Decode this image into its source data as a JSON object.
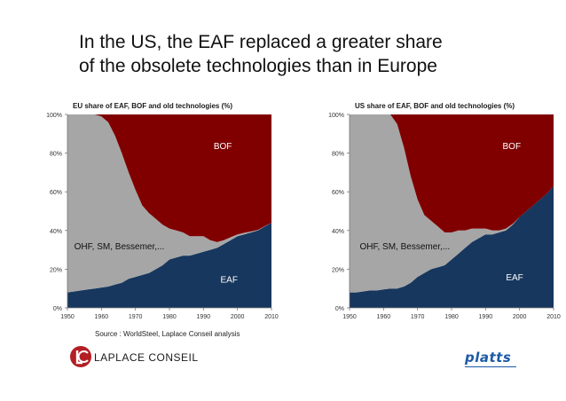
{
  "slide": {
    "title_line1": "In the US, the EAF replaced a greater share",
    "title_line2": "of the obsolete technologies than in Europe",
    "source": "Source : WorldSteel, Laplace Conseil analysis",
    "logo_left": {
      "text": "LAPLACE CONSEIL",
      "icon": "laplace-conseil-logo-icon"
    },
    "logo_right": {
      "text": "platts",
      "icon": "platts-logo"
    }
  },
  "colors": {
    "eaf": "#17375e",
    "old": "#a6a6a6",
    "bof": "#800000"
  },
  "chart_data": [
    {
      "type": "area",
      "stacked": true,
      "title": "EU share of EAF, BOF and old technologies (%)",
      "xlabel": "",
      "ylabel": "",
      "xlim": [
        1950,
        2010
      ],
      "ylim": [
        0,
        100
      ],
      "xticks": [
        1950,
        1960,
        1970,
        1980,
        1990,
        2000,
        2010
      ],
      "yticks": [
        "0%",
        "20%",
        "40%",
        "60%",
        "80%",
        "100%"
      ],
      "grid": false,
      "x": [
        1950,
        1952,
        1954,
        1956,
        1958,
        1960,
        1962,
        1964,
        1966,
        1968,
        1970,
        1972,
        1974,
        1976,
        1978,
        1980,
        1982,
        1984,
        1986,
        1988,
        1990,
        1992,
        1994,
        1996,
        1998,
        2000,
        2002,
        2004,
        2006,
        2008,
        2010
      ],
      "series": [
        {
          "name": "EAF",
          "label": "EAF",
          "values": [
            8,
            8.5,
            9,
            9.5,
            10,
            10.5,
            11,
            12,
            13,
            15,
            16,
            17,
            18,
            20,
            22,
            25,
            26,
            27,
            27,
            28,
            29,
            30,
            31,
            33,
            35,
            37,
            38,
            39,
            40,
            42,
            44
          ]
        },
        {
          "name": "OHF, SM, Bessemer,...",
          "label": "OHF, SM, Bessemer,...",
          "values": [
            92,
            91.5,
            91,
            90.5,
            90,
            88.5,
            85,
            77,
            67,
            55,
            45,
            36,
            31,
            26,
            21,
            16,
            14,
            12,
            10,
            9,
            8,
            5,
            3,
            2,
            1.5,
            1,
            0.8,
            0.5,
            0.3,
            0.2,
            0
          ]
        },
        {
          "name": "BOF",
          "label": "BOF",
          "values": [
            0,
            0,
            0,
            0,
            0,
            1,
            4,
            11,
            20,
            30,
            39,
            47,
            51,
            54,
            57,
            59,
            60,
            61,
            63,
            63,
            63,
            65,
            66,
            65,
            63.5,
            62,
            61.2,
            60.5,
            59.7,
            57.8,
            56
          ]
        }
      ],
      "area_labels": [
        {
          "text": "BOF",
          "x": 1993,
          "y": 84
        },
        {
          "text": "OHF, SM, Bessemer,...",
          "x": 1952,
          "y": 32
        },
        {
          "text": "EAF",
          "x": 1995,
          "y": 15
        }
      ]
    },
    {
      "type": "area",
      "stacked": true,
      "title": "US share of EAF, BOF and old technologies (%)",
      "xlabel": "",
      "ylabel": "",
      "xlim": [
        1950,
        2010
      ],
      "ylim": [
        0,
        100
      ],
      "xticks": [
        1950,
        1960,
        1970,
        1980,
        1990,
        2000,
        2010
      ],
      "yticks": [
        "0%",
        "20%",
        "40%",
        "60%",
        "80%",
        "100%"
      ],
      "grid": false,
      "x": [
        1950,
        1952,
        1954,
        1956,
        1958,
        1960,
        1962,
        1964,
        1966,
        1968,
        1970,
        1972,
        1974,
        1976,
        1978,
        1980,
        1982,
        1984,
        1986,
        1988,
        1990,
        1992,
        1994,
        1996,
        1998,
        2000,
        2002,
        2004,
        2006,
        2008,
        2010
      ],
      "series": [
        {
          "name": "EAF",
          "label": "EAF",
          "values": [
            8,
            8,
            8.5,
            9,
            9,
            9.5,
            10,
            10,
            11,
            13,
            16,
            18,
            20,
            21,
            22,
            25,
            28,
            31,
            34,
            36,
            38,
            38,
            39,
            40,
            43,
            47,
            50,
            53,
            56,
            59,
            63
          ]
        },
        {
          "name": "OHF, SM, Bessemer,...",
          "label": "OHF, SM, Bessemer,...",
          "values": [
            92,
            92,
            91.5,
            91,
            91,
            90.5,
            90,
            85,
            72,
            55,
            40,
            30,
            25,
            21,
            17,
            14,
            12,
            9,
            7,
            5,
            3,
            2,
            1,
            1,
            0.5,
            0,
            0,
            0,
            0,
            0,
            0
          ]
        },
        {
          "name": "BOF",
          "label": "BOF",
          "values": [
            0,
            0,
            0,
            0,
            0,
            0,
            0,
            5,
            17,
            32,
            44,
            52,
            55,
            58,
            61,
            61,
            60,
            60,
            59,
            59,
            59,
            60,
            60,
            59,
            56.5,
            53,
            50,
            47,
            44,
            41,
            37
          ]
        }
      ],
      "area_labels": [
        {
          "text": "BOF",
          "x": 1995,
          "y": 84
        },
        {
          "text": "OHF, SM, Bessemer,...",
          "x": 1953,
          "y": 32
        },
        {
          "text": "EAF",
          "x": 1996,
          "y": 16
        }
      ]
    }
  ]
}
